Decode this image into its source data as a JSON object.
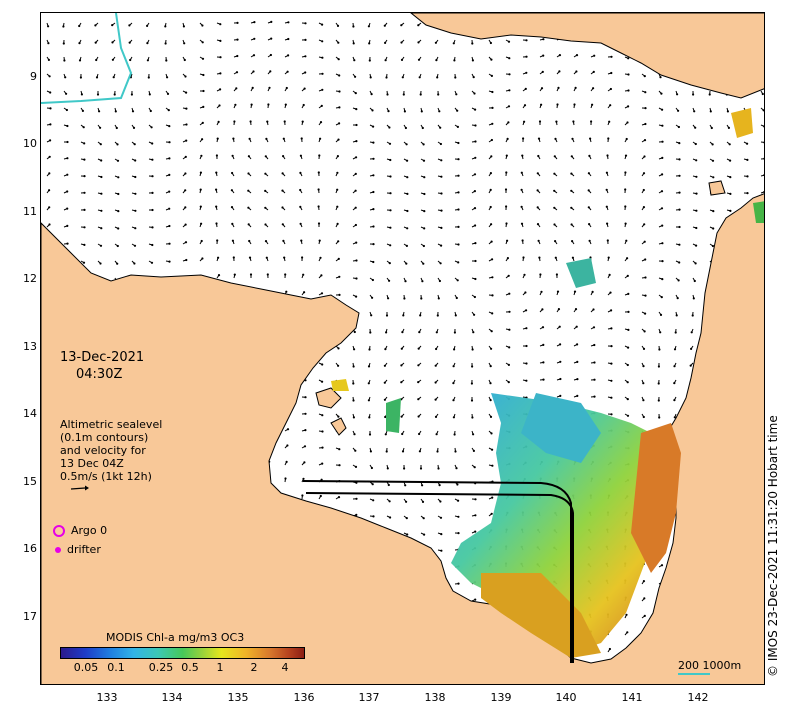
{
  "map": {
    "date": "13-Dec-2021",
    "time": "04:30Z",
    "legend_lines": [
      "Altimetric sealevel",
      "(0.1m contours)",
      "and velocity for",
      "13 Dec 04Z",
      "0.5m/s (1kt 12h)"
    ],
    "markers": {
      "argo": "Argo 0",
      "drifter": "drifter"
    },
    "colorbar": {
      "title": "MODIS Chl-a mg/m3 OC3",
      "ticks": [
        "0.05",
        "0.1",
        "0.25",
        "0.5",
        "1",
        "2",
        "4"
      ]
    },
    "scale": "200  1000m",
    "credit": "© IMOS 23-Dec-2021 11:31:20 Hobart time",
    "x_ticks": [
      "133",
      "134",
      "135",
      "136",
      "137",
      "138",
      "139",
      "140",
      "141",
      "142"
    ],
    "y_ticks": [
      "9",
      "10",
      "11",
      "12",
      "13",
      "14",
      "15",
      "16",
      "17"
    ],
    "colors": {
      "land": "#f8c898",
      "ocean": "#ffffff",
      "marker": "#e600e6",
      "isobath": "#40c8c8"
    }
  }
}
